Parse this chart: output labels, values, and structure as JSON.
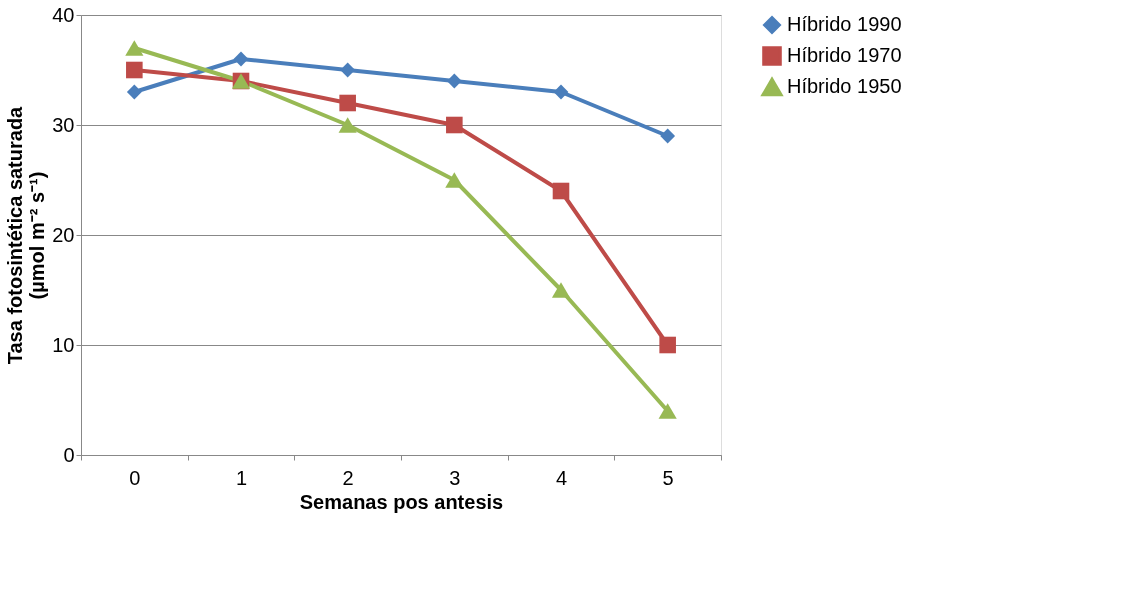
{
  "chart_data": {
    "type": "line",
    "xlabel": "Semanas pos antesis",
    "ylabel": "Tasa fotosintética saturada\n(µmol m⁻² s⁻¹)",
    "categories": [
      "0",
      "1",
      "2",
      "3",
      "4",
      "5"
    ],
    "series": [
      {
        "name": "Híbrido 1990",
        "color": "#4a7ebb",
        "marker": "diamond",
        "values": [
          33,
          36,
          35,
          34,
          33,
          29
        ]
      },
      {
        "name": "Híbrido 1970",
        "color": "#be4b48",
        "marker": "square",
        "values": [
          35,
          34,
          32,
          30,
          24,
          10
        ]
      },
      {
        "name": "Híbrido 1950",
        "color": "#98b954",
        "marker": "triangle",
        "values": [
          37,
          34,
          30,
          25,
          15,
          4
        ]
      }
    ],
    "ylim": [
      0,
      40
    ],
    "yticks": [
      0,
      10,
      20,
      30,
      40
    ],
    "grid": "y",
    "legend": "right",
    "line_style": "solid"
  }
}
